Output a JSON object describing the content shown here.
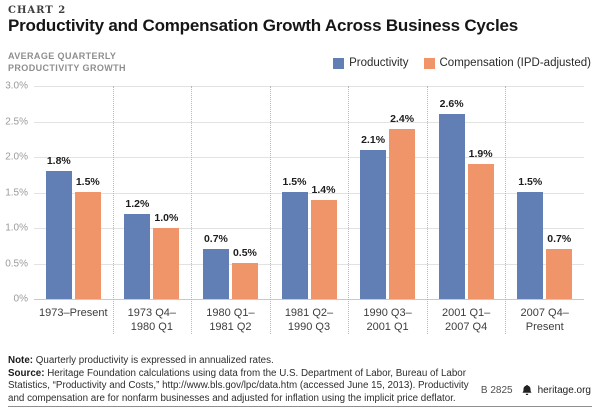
{
  "header": {
    "eyebrow": "CHART 2"
  },
  "chart_data": {
    "type": "bar",
    "title": "Productivity and Compensation Growth Across Business Cycles",
    "y_axis_title_lines": [
      "AVERAGE QUARTERLY",
      "PRODUCTIVITY GROWTH"
    ],
    "categories": [
      "1973–Present",
      "1973 Q4–\n1980 Q1",
      "1980 Q1–\n1981 Q2",
      "1981 Q2–\n1990 Q3",
      "1990 Q3–\n2001 Q1",
      "2001 Q1–\n2007 Q4",
      "2007 Q4–\nPresent"
    ],
    "series": [
      {
        "name": "Productivity",
        "color": "#617fb4",
        "values": [
          1.8,
          1.2,
          0.7,
          1.5,
          2.1,
          2.6,
          1.5
        ]
      },
      {
        "name": "Compensation (IPD-adjusted)",
        "color": "#f0956a",
        "values": [
          1.5,
          1.0,
          0.5,
          1.4,
          2.4,
          1.9,
          0.7
        ]
      }
    ],
    "value_label_suffix": "%",
    "ylim": [
      0,
      3
    ],
    "tick_values": [
      3,
      2.5,
      2,
      1.5,
      1,
      0.5,
      0
    ],
    "tick_labels": [
      "3.0%",
      "2.5%",
      "2.0%",
      "1.5%",
      "1.0%",
      "0.5%",
      "0%"
    ],
    "grid": true,
    "legend_position": "top-right"
  },
  "footer": {
    "note_label": "Note:",
    "note": " Quarterly productivity is expressed in annualized rates.",
    "source_label": "Source:",
    "source": " Heritage Foundation calculations using data from the U.S. Department of Labor, Bureau of Labor Statistics, “Productivity and Costs,” http://www.bls.gov/lpc/data.htm (accessed June 15, 2013). Productivity and compensation are for nonfarm businesses and adjusted for inflation using the implicit price deflator.",
    "code": "B 2825",
    "site": "heritage.org"
  }
}
